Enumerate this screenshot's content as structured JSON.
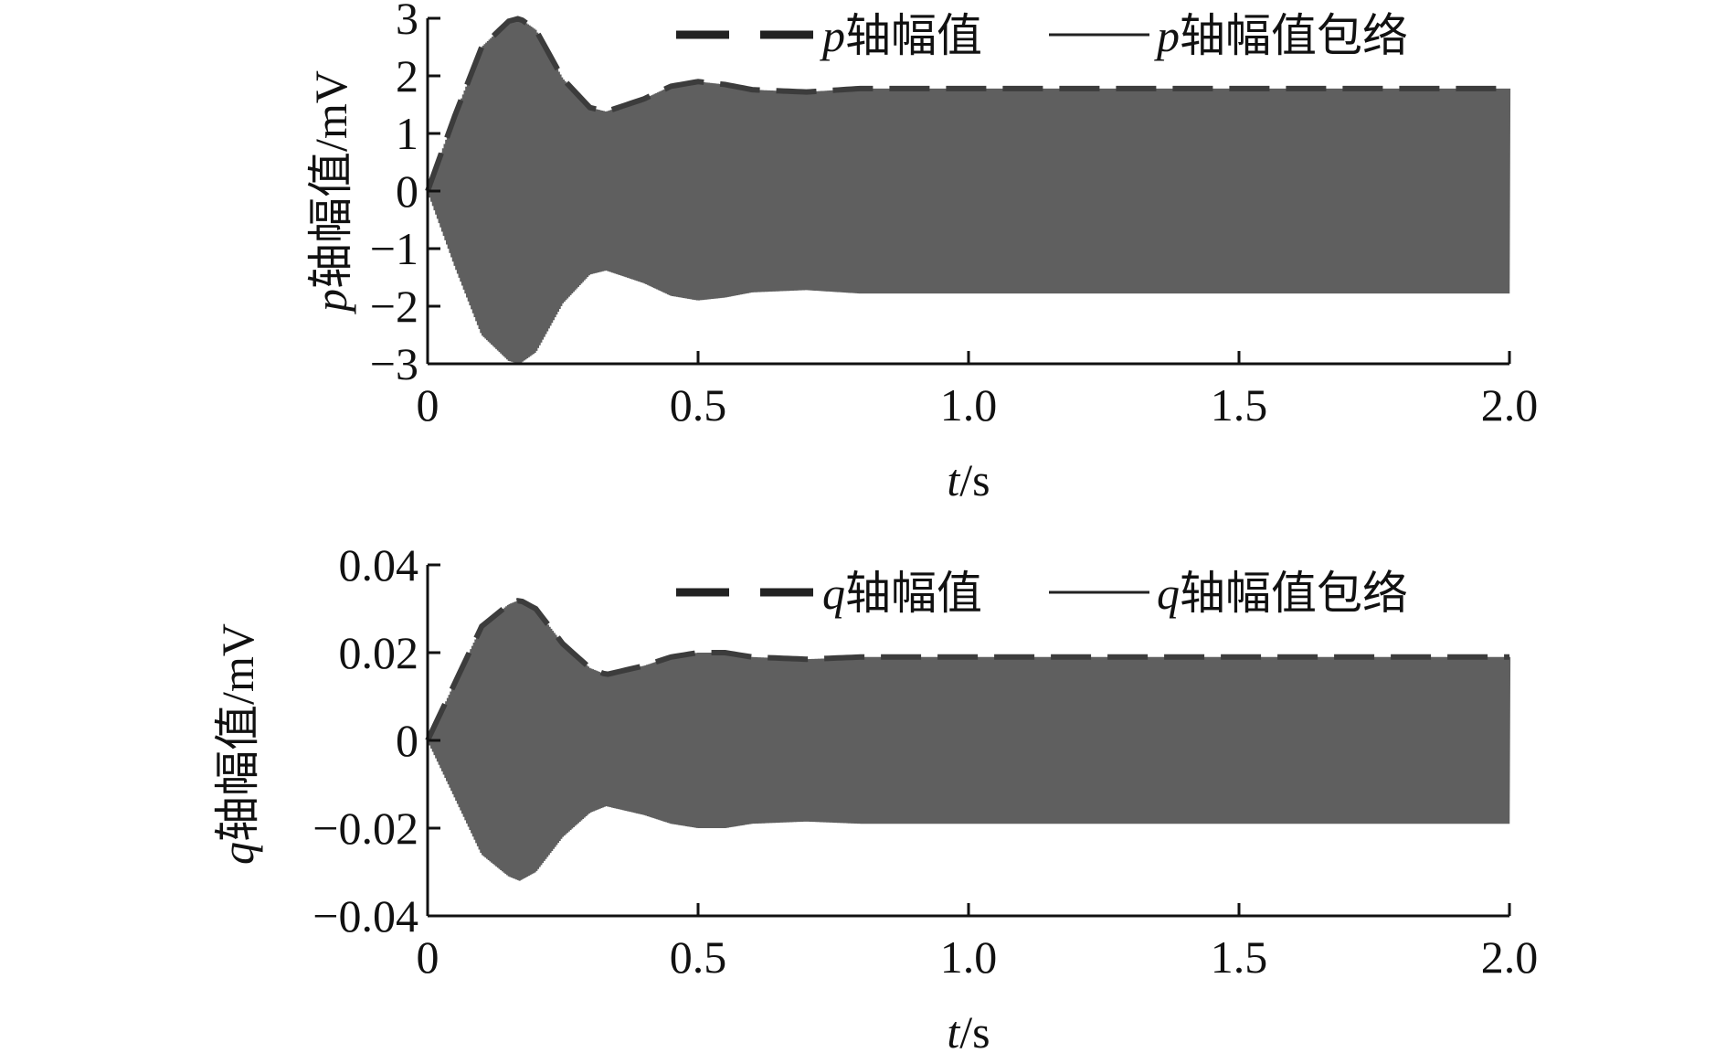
{
  "colors": {
    "signal": "#5f5f5f",
    "envelope": "#3c3c3c",
    "axis": "#111111"
  },
  "chart_data": [
    {
      "type": "line",
      "xlabel_var": "t",
      "xlabel_unit": "/s",
      "ylabel_var": "p",
      "ylabel_text": "轴幅值/mV",
      "xlim": [
        0,
        2.0
      ],
      "ylim": [
        -3,
        3
      ],
      "x_ticks": [
        0,
        0.5,
        1.0,
        1.5,
        2.0
      ],
      "x_tick_labels": [
        "0",
        "0.5",
        "1.0",
        "1.5",
        "2.0"
      ],
      "y_ticks": [
        3,
        2,
        1,
        0,
        -1,
        -2,
        -3
      ],
      "y_tick_labels": [
        "3",
        "2",
        "1",
        "0",
        "−1",
        "−2",
        "−3"
      ],
      "legend_position": "top-right",
      "series": [
        {
          "name_var": "p",
          "name_text": "轴幅值",
          "style": "dashed",
          "role": "envelope"
        },
        {
          "name_var": "p",
          "name_text": "轴幅值包络",
          "style": "solid",
          "role": "signal"
        }
      ],
      "envelope": {
        "t": [
          0,
          0.05,
          0.1,
          0.15,
          0.17,
          0.2,
          0.25,
          0.3,
          0.33,
          0.4,
          0.45,
          0.5,
          0.55,
          0.6,
          0.7,
          0.8,
          1.0,
          1.5,
          2.0
        ],
        "amp": [
          0,
          1.3,
          2.5,
          2.95,
          3.0,
          2.8,
          1.95,
          1.45,
          1.38,
          1.6,
          1.82,
          1.9,
          1.85,
          1.76,
          1.72,
          1.78,
          1.78,
          1.78,
          1.78
        ]
      }
    },
    {
      "type": "line",
      "xlabel_var": "t",
      "xlabel_unit": "/s",
      "ylabel_var": "q",
      "ylabel_text": "轴幅值/mV",
      "xlim": [
        0,
        2.0
      ],
      "ylim": [
        -0.04,
        0.04
      ],
      "x_ticks": [
        0,
        0.5,
        1.0,
        1.5,
        2.0
      ],
      "x_tick_labels": [
        "0",
        "0.5",
        "1.0",
        "1.5",
        "2.0"
      ],
      "y_ticks": [
        0.04,
        0.02,
        0,
        -0.02,
        -0.04
      ],
      "y_tick_labels": [
        "0.04",
        "0.02",
        "0",
        "−0.02",
        "−0.04"
      ],
      "legend_position": "top-right",
      "series": [
        {
          "name_var": "q",
          "name_text": "轴幅值",
          "style": "dashed",
          "role": "envelope"
        },
        {
          "name_var": "q",
          "name_text": "轴幅值包络",
          "style": "solid",
          "role": "signal"
        }
      ],
      "envelope": {
        "t": [
          0,
          0.05,
          0.1,
          0.15,
          0.17,
          0.2,
          0.25,
          0.3,
          0.33,
          0.4,
          0.45,
          0.5,
          0.55,
          0.6,
          0.7,
          0.8,
          1.0,
          1.5,
          2.0
        ],
        "amp": [
          0,
          0.013,
          0.026,
          0.031,
          0.032,
          0.03,
          0.022,
          0.0165,
          0.015,
          0.017,
          0.019,
          0.02,
          0.02,
          0.019,
          0.0185,
          0.019,
          0.019,
          0.019,
          0.019
        ]
      }
    }
  ]
}
